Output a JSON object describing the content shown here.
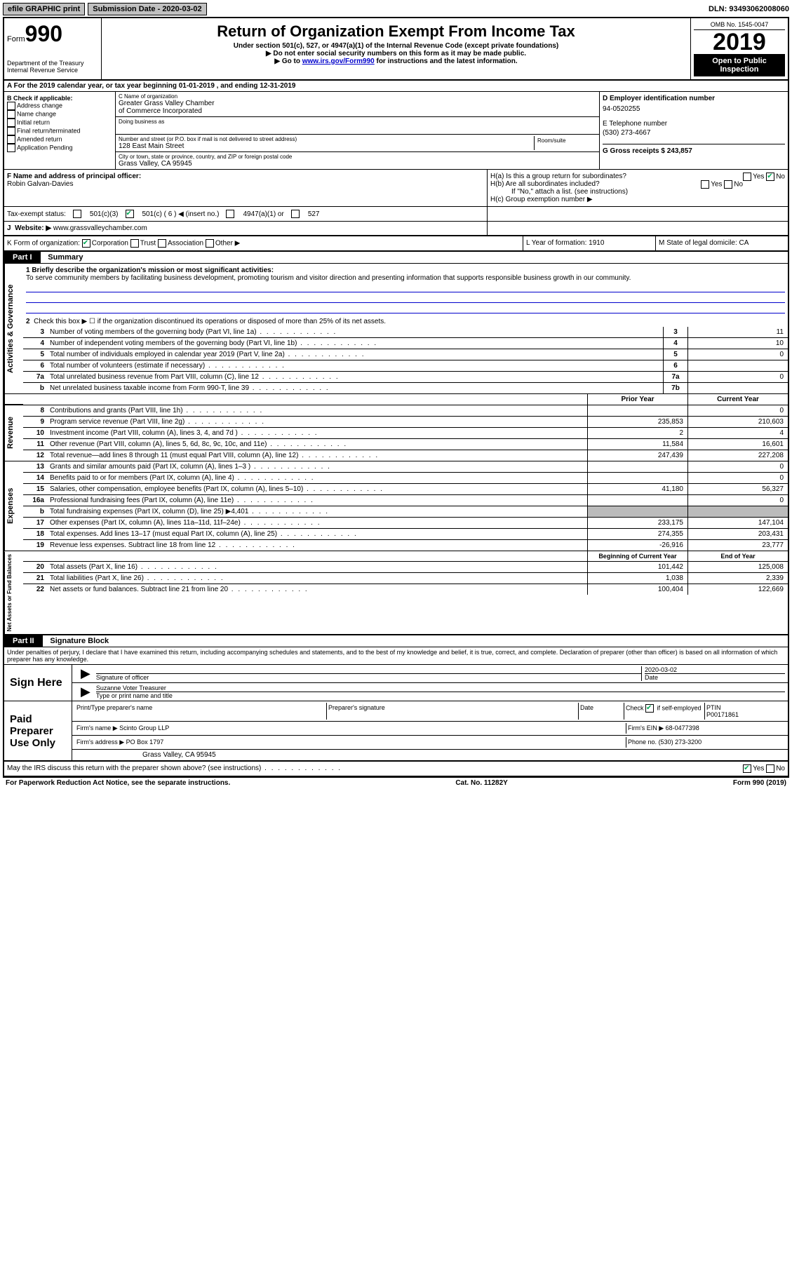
{
  "topbar": {
    "efile": "efile GRAPHIC print",
    "subdate_label": "Submission Date - 2020-03-02",
    "dln": "DLN: 93493062008060"
  },
  "header": {
    "form_word": "Form",
    "form_num": "990",
    "dept1": "Department of the Treasury",
    "dept2": "Internal Revenue Service",
    "title": "Return of Organization Exempt From Income Tax",
    "sub1": "Under section 501(c), 527, or 4947(a)(1) of the Internal Revenue Code (except private foundations)",
    "sub2": "▶ Do not enter social security numbers on this form as it may be made public.",
    "sub3a": "▶ Go to ",
    "sub3link": "www.irs.gov/Form990",
    "sub3b": " for instructions and the latest information.",
    "omb": "OMB No. 1545-0047",
    "year": "2019",
    "open": "Open to Public Inspection"
  },
  "rowA": "A   For the 2019 calendar year, or tax year beginning 01-01-2019    , and ending 12-31-2019",
  "boxB": {
    "label": "B Check if applicable:",
    "items": [
      "Address change",
      "Name change",
      "Initial return",
      "Final return/terminated",
      "Amended return",
      "Application Pending"
    ]
  },
  "boxC": {
    "name_label": "C Name of organization",
    "name1": "Greater Grass Valley Chamber",
    "name2": "of Commerce Incorporated",
    "dba_label": "Doing business as",
    "addr_label": "Number and street (or P.O. box if mail is not delivered to street address)",
    "room_label": "Room/suite",
    "addr": "128 East Main Street",
    "city_label": "City or town, state or province, country, and ZIP or foreign postal code",
    "city": "Grass Valley, CA  95945"
  },
  "boxD": {
    "label": "D Employer identification number",
    "val": "94-0520255"
  },
  "boxE": {
    "label": "E Telephone number",
    "val": "(530) 273-4667"
  },
  "boxG": {
    "label": "G Gross receipts $ 243,857"
  },
  "boxF": {
    "label": "F  Name and address of principal officer:",
    "val": "Robin Galvan-Davies"
  },
  "boxH": {
    "a": "H(a)  Is this a group return for subordinates?",
    "b": "H(b)  Are all subordinates included?",
    "bnote": "If \"No,\" attach a list. (see instructions)",
    "c": "H(c)  Group exemption number ▶",
    "yes": "Yes",
    "no": "No"
  },
  "taxrow": {
    "label": "Tax-exempt status:",
    "c3": "501(c)(3)",
    "c": "501(c) ( 6 ) ◀ (insert no.)",
    "a1": "4947(a)(1) or",
    "s527": "527"
  },
  "rowJ": {
    "label": "J",
    "web": "Website: ▶",
    "val": "www.grassvalleychamber.com"
  },
  "rowK": {
    "k": "K Form of organization:",
    "corp": "Corporation",
    "trust": "Trust",
    "assoc": "Association",
    "other": "Other ▶",
    "l": "L Year of formation: 1910",
    "m": "M State of legal domicile: CA"
  },
  "part1": {
    "hdr": "Part I",
    "title": "Summary",
    "line1": "1  Briefly describe the organization's mission or most significant activities:",
    "mission": "To serve community members by facilitating business development, promoting tourism and visitor direction and presenting information that supports responsible business growth in our community.",
    "line2": "Check this box ▶ ☐  if the organization discontinued its operations or disposed of more than 25% of its net assets.",
    "side_act": "Activities & Governance",
    "side_rev": "Revenue",
    "side_exp": "Expenses",
    "side_net": "Net Assets or Fund Balances",
    "col_prior": "Prior Year",
    "col_curr": "Current Year",
    "col_beg": "Beginning of Current Year",
    "col_end": "End of Year",
    "rows_gov": [
      {
        "n": "3",
        "d": "Number of voting members of the governing body (Part VI, line 1a)",
        "box": "3",
        "v": "11"
      },
      {
        "n": "4",
        "d": "Number of independent voting members of the governing body (Part VI, line 1b)",
        "box": "4",
        "v": "10"
      },
      {
        "n": "5",
        "d": "Total number of individuals employed in calendar year 2019 (Part V, line 2a)",
        "box": "5",
        "v": "0"
      },
      {
        "n": "6",
        "d": "Total number of volunteers (estimate if necessary)",
        "box": "6",
        "v": ""
      },
      {
        "n": "7a",
        "d": "Total unrelated business revenue from Part VIII, column (C), line 12",
        "box": "7a",
        "v": "0"
      },
      {
        "n": "b",
        "d": "Net unrelated business taxable income from Form 990-T, line 39",
        "box": "7b",
        "v": ""
      }
    ],
    "rows_rev": [
      {
        "n": "8",
        "d": "Contributions and grants (Part VIII, line 1h)",
        "p": "",
        "c": "0"
      },
      {
        "n": "9",
        "d": "Program service revenue (Part VIII, line 2g)",
        "p": "235,853",
        "c": "210,603"
      },
      {
        "n": "10",
        "d": "Investment income (Part VIII, column (A), lines 3, 4, and 7d )",
        "p": "2",
        "c": "4"
      },
      {
        "n": "11",
        "d": "Other revenue (Part VIII, column (A), lines 5, 6d, 8c, 9c, 10c, and 11e)",
        "p": "11,584",
        "c": "16,601"
      },
      {
        "n": "12",
        "d": "Total revenue—add lines 8 through 11 (must equal Part VIII, column (A), line 12)",
        "p": "247,439",
        "c": "227,208"
      }
    ],
    "rows_exp": [
      {
        "n": "13",
        "d": "Grants and similar amounts paid (Part IX, column (A), lines 1–3 )",
        "p": "",
        "c": "0"
      },
      {
        "n": "14",
        "d": "Benefits paid to or for members (Part IX, column (A), line 4)",
        "p": "",
        "c": "0"
      },
      {
        "n": "15",
        "d": "Salaries, other compensation, employee benefits (Part IX, column (A), lines 5–10)",
        "p": "41,180",
        "c": "56,327"
      },
      {
        "n": "16a",
        "d": "Professional fundraising fees (Part IX, column (A), line 11e)",
        "p": "",
        "c": "0"
      },
      {
        "n": "b",
        "d": "Total fundraising expenses (Part IX, column (D), line 25) ▶4,401",
        "p": "GREY",
        "c": "GREY"
      },
      {
        "n": "17",
        "d": "Other expenses (Part IX, column (A), lines 11a–11d, 11f–24e)",
        "p": "233,175",
        "c": "147,104"
      },
      {
        "n": "18",
        "d": "Total expenses. Add lines 13–17 (must equal Part IX, column (A), line 25)",
        "p": "274,355",
        "c": "203,431"
      },
      {
        "n": "19",
        "d": "Revenue less expenses. Subtract line 18 from line 12",
        "p": "-26,916",
        "c": "23,777"
      }
    ],
    "rows_net": [
      {
        "n": "20",
        "d": "Total assets (Part X, line 16)",
        "p": "101,442",
        "c": "125,008"
      },
      {
        "n": "21",
        "d": "Total liabilities (Part X, line 26)",
        "p": "1,038",
        "c": "2,339"
      },
      {
        "n": "22",
        "d": "Net assets or fund balances. Subtract line 21 from line 20",
        "p": "100,404",
        "c": "122,669"
      }
    ]
  },
  "part2": {
    "hdr": "Part II",
    "title": "Signature Block",
    "decl": "Under penalties of perjury, I declare that I have examined this return, including accompanying schedules and statements, and to the best of my knowledge and belief, it is true, correct, and complete. Declaration of preparer (other than officer) is based on all information of which preparer has any knowledge.",
    "sign_here": "Sign Here",
    "sig_officer": "Signature of officer",
    "sig_date": "Date",
    "sig_date_val": "2020-03-02",
    "name_title": "Suzanne Voter Treasurer",
    "name_title_label": "Type or print name and title",
    "paid": "Paid Preparer Use Only",
    "prep_name_label": "Print/Type preparer's name",
    "prep_sig_label": "Preparer's signature",
    "date_label": "Date",
    "check_label": "Check",
    "self_emp": "if self-employed",
    "ptin_label": "PTIN",
    "ptin": "P00171861",
    "firm_name_label": "Firm's name    ▶",
    "firm_name": "Scinto Group LLP",
    "firm_ein_label": "Firm's EIN ▶",
    "firm_ein": "68-0477398",
    "firm_addr_label": "Firm's address ▶",
    "firm_addr1": "PO Box 1797",
    "firm_addr2": "Grass Valley, CA  95945",
    "phone_label": "Phone no.",
    "phone": "(530) 273-3200",
    "discuss": "May the IRS discuss this return with the preparer shown above? (see instructions)"
  },
  "footer": {
    "left": "For Paperwork Reduction Act Notice, see the separate instructions.",
    "mid": "Cat. No. 11282Y",
    "right": "Form 990 (2019)"
  }
}
